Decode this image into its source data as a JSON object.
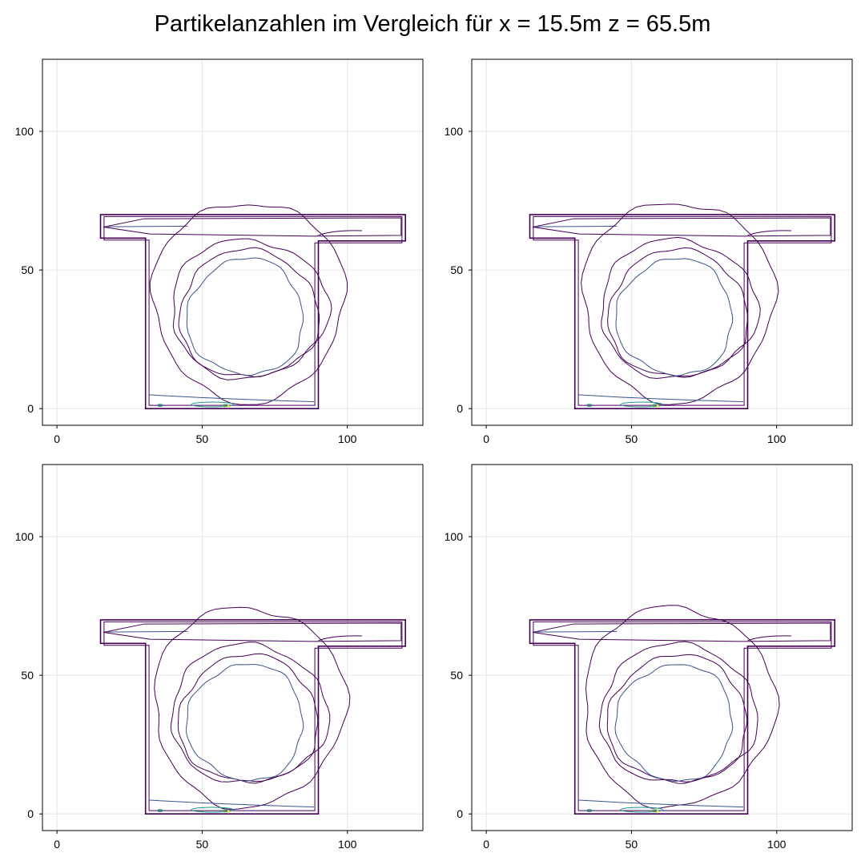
{
  "title": "Partikelanzahlen im Vergleich für x = 15.5m z = 65.5m",
  "colors": {
    "contour_outer": "#440154",
    "contour_mid": "#3b528b",
    "contour_inner": "#21918c",
    "contour_high": "#5ec962",
    "contour_peak": "#fde725",
    "grid": "#e6e6e6",
    "frame": "#000000"
  },
  "chart_data": [
    {
      "type": "contour",
      "panel": "top-left",
      "title": "",
      "xlabel": "",
      "ylabel": "",
      "xlim": [
        -5,
        126
      ],
      "ylim": [
        -6,
        126
      ],
      "xticks": [
        0,
        50,
        100
      ],
      "yticks": [
        0,
        50,
        100
      ],
      "grid": true,
      "domain_outline": [
        [
          30.5,
          0
        ],
        [
          90,
          0
        ],
        [
          90,
          60.5
        ],
        [
          120,
          60.5
        ],
        [
          120,
          70
        ],
        [
          15,
          70
        ],
        [
          15,
          61.5
        ],
        [
          30.5,
          61.5
        ]
      ],
      "circulation_center": [
        66,
        39
      ],
      "contour_rings": [
        {
          "level": 1,
          "cx": 66,
          "cy": 39,
          "rx": 33,
          "ry": 36
        },
        {
          "level": 2,
          "cx": 66,
          "cy": 36,
          "rx": 27,
          "ry": 25
        },
        {
          "level": 3,
          "cx": 66,
          "cy": 34,
          "rx": 24,
          "ry": 23
        },
        {
          "level": 4,
          "cx": 65,
          "cy": 33,
          "rx": 20,
          "ry": 21
        }
      ],
      "bottom_hotspot": {
        "x_range": [
          33,
          62
        ],
        "peak_x": 58,
        "y": 1.5
      }
    },
    {
      "type": "contour",
      "panel": "top-right",
      "title": "",
      "xlabel": "",
      "ylabel": "",
      "xlim": [
        -5,
        126
      ],
      "ylim": [
        -6,
        126
      ],
      "xticks": [
        0,
        50,
        100
      ],
      "yticks": [
        0,
        50,
        100
      ],
      "grid": true,
      "domain_outline": [
        [
          30.5,
          0
        ],
        [
          90,
          0
        ],
        [
          90,
          60.5
        ],
        [
          120,
          60.5
        ],
        [
          120,
          70
        ],
        [
          15,
          70
        ],
        [
          15,
          61.5
        ],
        [
          30.5,
          61.5
        ]
      ],
      "circulation_center": [
        66,
        39
      ],
      "contour_rings": [
        {
          "level": 1,
          "cx": 66,
          "cy": 39,
          "rx": 33,
          "ry": 36
        },
        {
          "level": 2,
          "cx": 66,
          "cy": 36,
          "rx": 27,
          "ry": 25
        },
        {
          "level": 3,
          "cx": 66,
          "cy": 34,
          "rx": 24,
          "ry": 23
        },
        {
          "level": 4,
          "cx": 65,
          "cy": 33,
          "rx": 20,
          "ry": 21
        }
      ],
      "bottom_hotspot": {
        "x_range": [
          33,
          62
        ],
        "peak_x": 58,
        "y": 1.5
      }
    },
    {
      "type": "contour",
      "panel": "bottom-left",
      "title": "",
      "xlabel": "",
      "ylabel": "",
      "xlim": [
        -5,
        126
      ],
      "ylim": [
        -6,
        126
      ],
      "xticks": [
        0,
        50,
        100
      ],
      "yticks": [
        0,
        50,
        100
      ],
      "grid": true,
      "domain_outline": [
        [
          30.5,
          0
        ],
        [
          90,
          0
        ],
        [
          90,
          60.5
        ],
        [
          120,
          60.5
        ],
        [
          120,
          70
        ],
        [
          15,
          70
        ],
        [
          15,
          61.5
        ],
        [
          30.5,
          61.5
        ]
      ],
      "circulation_center": [
        66,
        39
      ],
      "contour_rings": [
        {
          "level": 1,
          "cx": 66,
          "cy": 39,
          "rx": 33,
          "ry": 36
        },
        {
          "level": 2,
          "cx": 66,
          "cy": 36,
          "rx": 27,
          "ry": 25
        },
        {
          "level": 3,
          "cx": 66,
          "cy": 34,
          "rx": 24,
          "ry": 23
        },
        {
          "level": 4,
          "cx": 65,
          "cy": 33,
          "rx": 20,
          "ry": 21
        }
      ],
      "bottom_hotspot": {
        "x_range": [
          33,
          62
        ],
        "peak_x": 58,
        "y": 1.5
      }
    },
    {
      "type": "contour",
      "panel": "bottom-right",
      "title": "",
      "xlabel": "",
      "ylabel": "",
      "xlim": [
        -5,
        126
      ],
      "ylim": [
        -6,
        126
      ],
      "xticks": [
        0,
        50,
        100
      ],
      "yticks": [
        0,
        50,
        100
      ],
      "grid": true,
      "domain_outline": [
        [
          30.5,
          0
        ],
        [
          90,
          0
        ],
        [
          90,
          60.5
        ],
        [
          120,
          60.5
        ],
        [
          120,
          70
        ],
        [
          15,
          70
        ],
        [
          15,
          61.5
        ],
        [
          30.5,
          61.5
        ]
      ],
      "circulation_center": [
        66,
        39
      ],
      "contour_rings": [
        {
          "level": 1,
          "cx": 66,
          "cy": 39,
          "rx": 33,
          "ry": 36
        },
        {
          "level": 2,
          "cx": 66,
          "cy": 36,
          "rx": 27,
          "ry": 25
        },
        {
          "level": 3,
          "cx": 66,
          "cy": 34,
          "rx": 24,
          "ry": 23
        },
        {
          "level": 4,
          "cx": 65,
          "cy": 33,
          "rx": 20,
          "ry": 21
        }
      ],
      "bottom_hotspot": {
        "x_range": [
          33,
          62
        ],
        "peak_x": 58,
        "y": 1.5
      }
    }
  ]
}
